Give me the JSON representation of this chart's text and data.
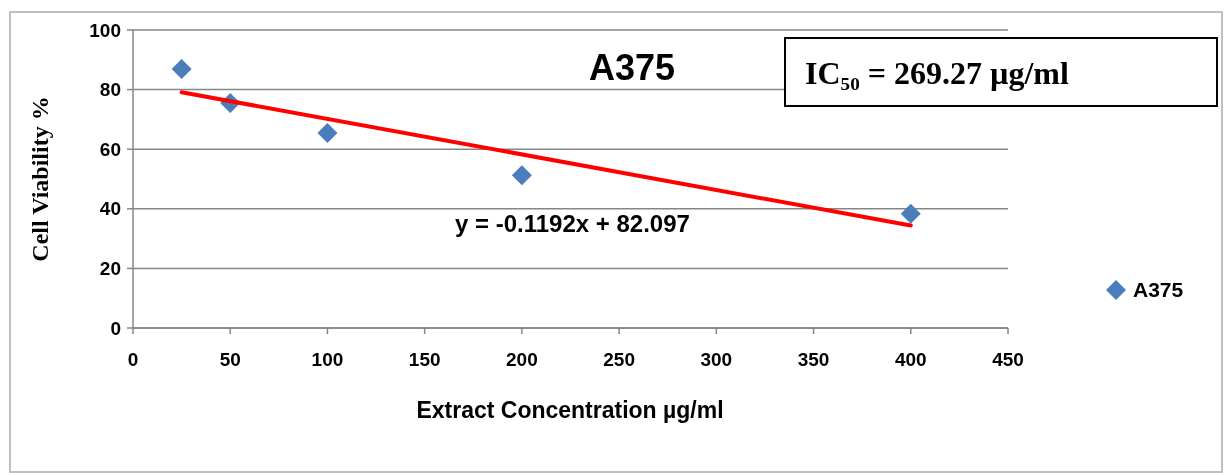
{
  "chart_data": {
    "type": "scatter",
    "title": "A375",
    "xlabel": "Extract Concentration  µg/ml",
    "ylabel": "Cell Viability  %",
    "x": [
      25,
      50,
      100,
      200,
      400
    ],
    "series": [
      {
        "name": "A375",
        "color": "#4a7ebb",
        "marker": "diamond",
        "values": [
          86.9,
          75.5,
          65.4,
          51.3,
          38.3
        ]
      },
      {
        "type": "line",
        "color": "#ff0000",
        "marker": "none",
        "x": [
          25,
          400
        ],
        "values": [
          79.1,
          34.4
        ]
      }
    ],
    "xlim": [
      0,
      450
    ],
    "xticks": [
      0,
      50,
      100,
      150,
      200,
      250,
      300,
      350,
      400,
      450
    ],
    "ylim": [
      0,
      100
    ],
    "yticks": [
      0,
      20,
      40,
      60,
      80,
      100
    ],
    "grid": "y",
    "legend": "right",
    "line_style": "solid",
    "annotations": [
      "IC₅₀ = 269.27 µg/ml",
      "y = -0.1192x + 82.097"
    ]
  }
}
